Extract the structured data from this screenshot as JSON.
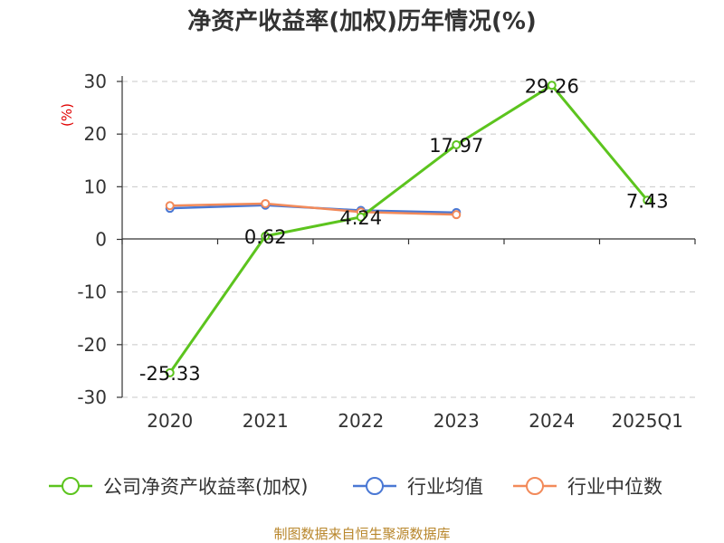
{
  "chart_data": {
    "type": "line",
    "title": "净资产收益率(加权)历年情况(%)",
    "ylabel": "(%)",
    "xlabel": "",
    "categories": [
      "2020",
      "2021",
      "2022",
      "2023",
      "2024",
      "2025Q1"
    ],
    "ylim": [
      -30,
      30
    ],
    "yticks": [
      30,
      20,
      10,
      0,
      -10,
      -20,
      -30
    ],
    "grid": true,
    "legend_position": "bottom",
    "series": [
      {
        "name": "公司净资产收益率(加权)",
        "color": "#5cc41e",
        "values": [
          -25.33,
          0.62,
          4.24,
          17.97,
          29.26,
          7.43
        ],
        "labels": [
          "-25.33",
          "0.62",
          "4.24",
          "17.97",
          "29.26",
          "7.43"
        ]
      },
      {
        "name": "行业均值",
        "color": "#4a78d4",
        "values": [
          5.9,
          6.5,
          5.5,
          5.1,
          null,
          null
        ]
      },
      {
        "name": "行业中位数",
        "color": "#f28a5a",
        "values": [
          6.4,
          6.8,
          5.2,
          4.7,
          null,
          null
        ]
      }
    ],
    "source": "制图数据来自恒生聚源数据库"
  }
}
